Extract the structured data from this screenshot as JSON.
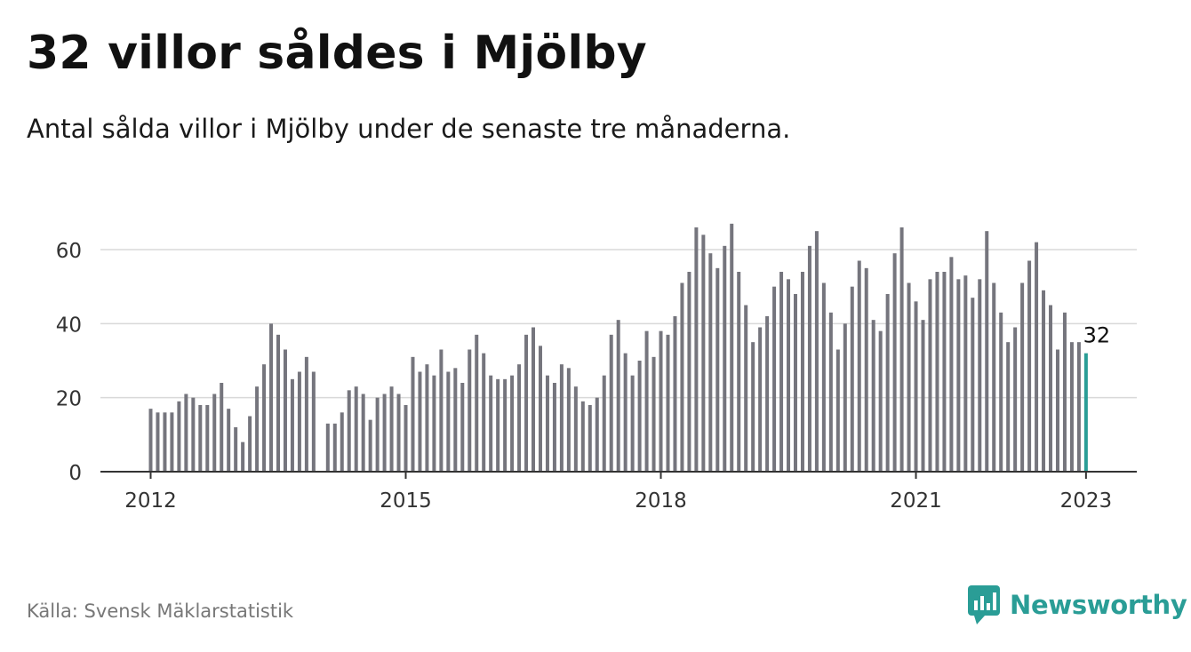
{
  "header": {
    "title": "32 villor såldes i Mjölby",
    "subtitle": "Antal sålda villor i Mjölby under de senaste tre månaderna."
  },
  "footer": {
    "source": "Källa: Svensk Mäklarstatistik",
    "brand": "Newsworthy"
  },
  "colors": {
    "bar": "#75757d",
    "highlight": "#2a9d96",
    "grid": "#d9d9d9",
    "axis": "#333333",
    "brand": "#2a9d96"
  },
  "chart_data": {
    "type": "bar",
    "title": "32 villor såldes i Mjölby",
    "subtitle": "Antal sålda villor i Mjölby under de senaste tre månaderna.",
    "xlabel": "",
    "ylabel": "",
    "start_year": 2012,
    "ylim": [
      0,
      70
    ],
    "yticks": [
      0,
      20,
      40,
      60
    ],
    "xticks": [
      "2012",
      "2015",
      "2018",
      "2021",
      "2023"
    ],
    "grid": true,
    "legend": "none",
    "annotation": {
      "label": "32",
      "target": "last"
    },
    "values": [
      17,
      16,
      16,
      16,
      19,
      21,
      20,
      18,
      18,
      21,
      24,
      17,
      12,
      8,
      15,
      23,
      29,
      40,
      37,
      33,
      25,
      27,
      31,
      27,
      null,
      13,
      13,
      16,
      22,
      23,
      21,
      14,
      20,
      21,
      23,
      21,
      18,
      31,
      27,
      29,
      26,
      33,
      27,
      28,
      24,
      33,
      37,
      32,
      26,
      25,
      25,
      26,
      29,
      37,
      39,
      34,
      26,
      24,
      29,
      28,
      23,
      19,
      18,
      20,
      26,
      37,
      41,
      32,
      26,
      30,
      38,
      31,
      38,
      37,
      42,
      51,
      54,
      66,
      64,
      59,
      55,
      61,
      67,
      54,
      45,
      35,
      39,
      42,
      50,
      54,
      52,
      48,
      54,
      61,
      65,
      51,
      43,
      33,
      40,
      50,
      57,
      55,
      41,
      38,
      48,
      59,
      66,
      51,
      46,
      41,
      52,
      54,
      54,
      58,
      52,
      53,
      47,
      52,
      65,
      51,
      43,
      35,
      39,
      51,
      57,
      62,
      49,
      45,
      33,
      43,
      35,
      35,
      32
    ]
  }
}
